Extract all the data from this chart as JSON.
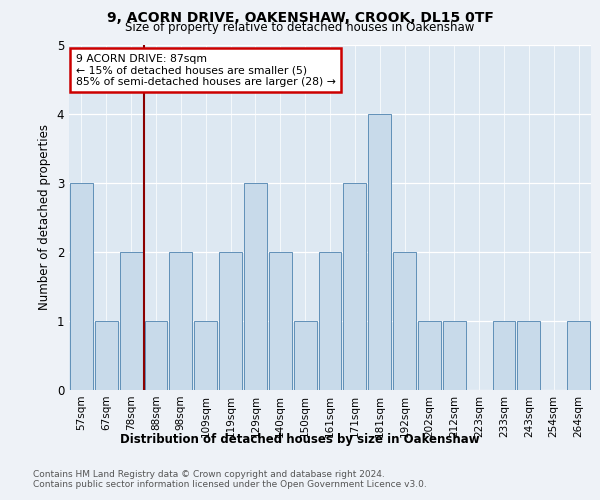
{
  "title1": "9, ACORN DRIVE, OAKENSHAW, CROOK, DL15 0TF",
  "title2": "Size of property relative to detached houses in Oakenshaw",
  "xlabel": "Distribution of detached houses by size in Oakenshaw",
  "ylabel": "Number of detached properties",
  "categories": [
    "57sqm",
    "67sqm",
    "78sqm",
    "88sqm",
    "98sqm",
    "109sqm",
    "119sqm",
    "129sqm",
    "140sqm",
    "150sqm",
    "161sqm",
    "171sqm",
    "181sqm",
    "192sqm",
    "202sqm",
    "212sqm",
    "223sqm",
    "233sqm",
    "243sqm",
    "254sqm",
    "264sqm"
  ],
  "values": [
    3,
    1,
    2,
    1,
    2,
    1,
    2,
    3,
    2,
    1,
    2,
    3,
    4,
    2,
    1,
    1,
    0,
    1,
    1,
    0,
    1
  ],
  "bar_color": "#c8daea",
  "bar_edge_color": "#6090b8",
  "vline_x": 2.5,
  "vline_color": "#8b0000",
  "box_edge_color": "#cc0000",
  "annotation_line1": "9 ACORN DRIVE: 87sqm",
  "annotation_line2": "← 15% of detached houses are smaller (5)",
  "annotation_line3": "85% of semi-detached houses are larger (28) →",
  "ylim": [
    0,
    5
  ],
  "yticks": [
    0,
    1,
    2,
    3,
    4,
    5
  ],
  "footer1": "Contains HM Land Registry data © Crown copyright and database right 2024.",
  "footer2": "Contains public sector information licensed under the Open Government Licence v3.0.",
  "fig_bg": "#eef2f7",
  "axes_bg": "#dde8f2"
}
